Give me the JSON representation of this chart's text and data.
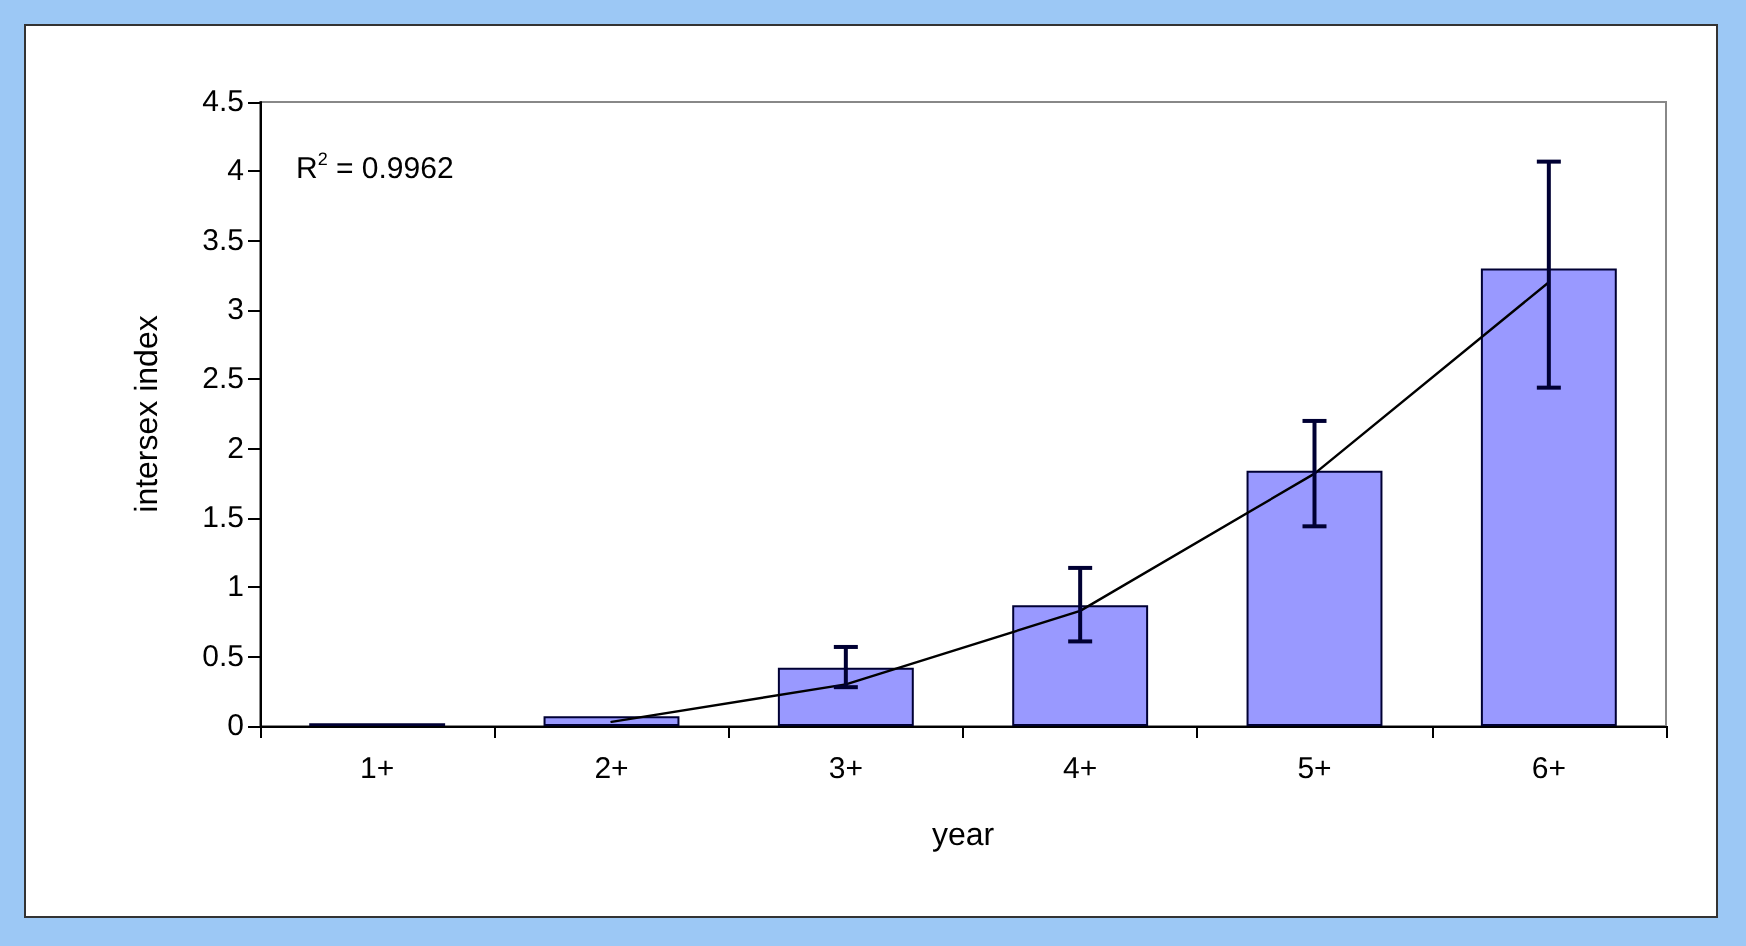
{
  "chart_data": {
    "type": "bar",
    "xlabel": "year",
    "ylabel": "intersex index",
    "categories": [
      "1+",
      "2+",
      "3+",
      "4+",
      "5+",
      "6+"
    ],
    "series": [
      {
        "color": "#9999ff",
        "values": [
          0.02,
          0.07,
          0.42,
          0.87,
          1.84,
          3.3
        ],
        "errors": [
          null,
          null,
          [
            0.28,
            0.57
          ],
          [
            0.61,
            1.14
          ],
          [
            1.44,
            2.2
          ],
          [
            2.44,
            4.07
          ]
        ]
      },
      {
        "type": "line",
        "color": "#000000",
        "x": [
          "2+",
          "3+",
          "4+",
          "5+",
          "6+"
        ],
        "values": [
          0.03,
          0.3,
          0.83,
          1.82,
          3.2
        ],
        "marker": "none",
        "line_style": "solid"
      }
    ],
    "ylim": [
      0,
      4.5
    ],
    "yticks": [
      0,
      0.5,
      1,
      1.5,
      2,
      2.5,
      3,
      3.5,
      4,
      4.5
    ],
    "grid": false,
    "annotations": [
      "R$^{2}$ = 0.9962"
    ]
  }
}
